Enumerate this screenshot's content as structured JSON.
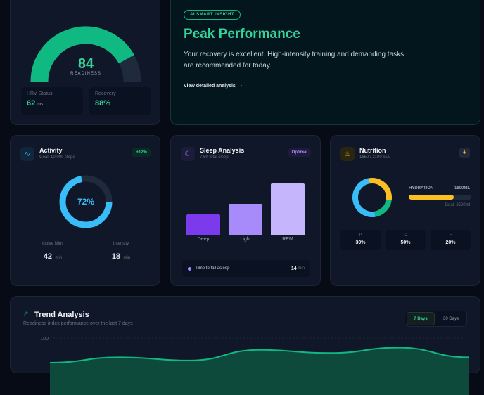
{
  "readiness": {
    "score": "84",
    "label": "READINESS",
    "level": 84,
    "hrv": {
      "label": "HRV Status",
      "value": "62",
      "unit": "ms"
    },
    "recovery": {
      "label": "Recovery",
      "value": "88%"
    }
  },
  "insight": {
    "badge": "AI SMART INSIGHT",
    "title": "Peak Performance",
    "body": "Your recovery is excellent. High-intensity training and demanding tasks are recommended for today.",
    "link": "View detailed analysis",
    "link_icon": "chevron-right-icon"
  },
  "activity": {
    "icon": "activity-icon",
    "title": "Activity",
    "subtitle": "Goal: 10,000 steps",
    "badge": "+12%",
    "percent": "72%",
    "progress": 72,
    "active_label": "Active Mins",
    "active_value": "42",
    "active_unit": "min",
    "intensity_label": "Intensity",
    "intensity_value": "18",
    "intensity_unit": "min"
  },
  "sleep": {
    "icon": "moon-icon",
    "title": "Sleep Analysis",
    "subtitle": "7.5h total sleep",
    "badge": "Optimal",
    "bars": [
      {
        "label": "Deep",
        "level": 40,
        "color": "#7c3aed"
      },
      {
        "label": "Light",
        "level": 60,
        "color": "#a78bfa"
      },
      {
        "label": "REM",
        "level": 100,
        "color": "#c4b5fd"
      }
    ],
    "fall_label": "Time to fall asleep",
    "fall_value": "14",
    "fall_unit": "min"
  },
  "nutrition": {
    "icon": "nutrition-icon",
    "title": "Nutrition",
    "subtitle": "1650 / 2100 kcal",
    "add_icon": "plus-icon",
    "hydration_label": "HYDRATION",
    "hydration_value": "1800ML",
    "hydration_goal": "Goal: 2500ml",
    "hydration_level": 72,
    "macros": [
      {
        "label": "P",
        "value": "30%",
        "pct": 30,
        "color": "#fbbf24"
      },
      {
        "label": "C",
        "value": "50%",
        "pct": 50,
        "color": "#38bdf8"
      },
      {
        "label": "F",
        "value": "20%",
        "pct": 20,
        "color": "#10b981"
      }
    ]
  },
  "trend": {
    "icon": "trending-up-icon",
    "title": "Trend Analysis",
    "subtitle": "Readiness index performance over the last 7 days",
    "tabs": [
      "7 Days",
      "30 Days"
    ],
    "active_tab": "7 Days"
  },
  "chart_data": {
    "type": "area",
    "y_ticks": [
      "100"
    ],
    "ylim": [
      75,
      100
    ],
    "values": [
      77,
      82,
      79,
      89,
      86,
      91,
      82
    ],
    "color": "#10b981",
    "grid": true
  }
}
